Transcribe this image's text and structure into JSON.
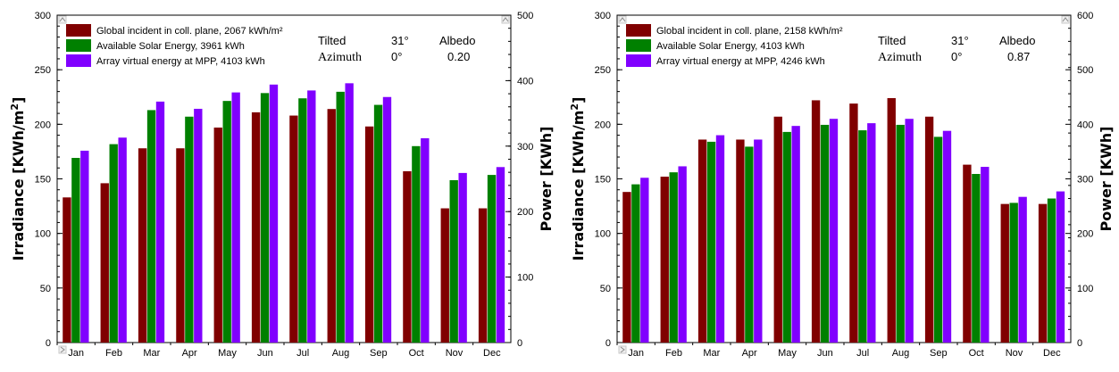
{
  "chart_data": [
    {
      "type": "bar",
      "categories": [
        "Jan",
        "Feb",
        "Mar",
        "Apr",
        "May",
        "Jun",
        "Jul",
        "Aug",
        "Sep",
        "Oct",
        "Nov",
        "Dec"
      ],
      "ylabel": "Irradiance [KWh/m²]",
      "ylabel_main": "Irradiance [KWh/m",
      "ylabel_sup": "2",
      "ylabel_end": "]",
      "y2label": "Power [KWh]",
      "ylim": [
        0,
        300
      ],
      "y2lim": [
        0,
        500
      ],
      "yticks": [
        "0",
        "50",
        "100",
        "150",
        "200",
        "250",
        "300"
      ],
      "y2ticks": [
        "0",
        "100",
        "200",
        "300",
        "400",
        "500"
      ],
      "series": [
        {
          "name": "Global incident in coll. plane,  2067 kWh/m²",
          "axis": "left",
          "color": "#800000",
          "values": [
            133,
            146,
            178,
            178,
            197,
            211,
            208,
            214,
            198,
            157,
            123,
            123
          ]
        },
        {
          "name": "Available Solar Energy,  3961 kWh",
          "axis": "right",
          "color": "#008000",
          "values": [
            282,
            303,
            355,
            345,
            369,
            381,
            373,
            383,
            363,
            300,
            248,
            256
          ]
        },
        {
          "name": "Array virtual energy at MPP,  4103 kWh",
          "axis": "right",
          "color": "#8000ff",
          "values": [
            293,
            313,
            368,
            357,
            382,
            394,
            385,
            396,
            375,
            312,
            259,
            268
          ]
        }
      ],
      "info": {
        "tilted_label": "Tilted",
        "tilted_value": "31°",
        "albedo_label": "Albedo",
        "albedo_value": "0.20",
        "azimuth_label": "Azimuth",
        "azimuth_value": "0°"
      },
      "legend_position": "top-left"
    },
    {
      "type": "bar",
      "categories": [
        "Jan",
        "Feb",
        "Mar",
        "Apr",
        "May",
        "Jun",
        "Jul",
        "Aug",
        "Sep",
        "Oct",
        "Nov",
        "Dec"
      ],
      "ylabel": "Irradiance [KWh/m²]",
      "ylabel_main": "Irradiance [KWh/m",
      "ylabel_sup": "2",
      "ylabel_end": "]",
      "y2label": "Power [KWh]",
      "ylim": [
        0,
        300
      ],
      "y2lim": [
        0,
        600
      ],
      "yticks": [
        "0",
        "50",
        "100",
        "150",
        "200",
        "250",
        "300"
      ],
      "y2ticks": [
        "0",
        "100",
        "200",
        "300",
        "400",
        "500",
        "600"
      ],
      "series": [
        {
          "name": "Global incident in coll. plane,  2158 kWh/m²",
          "axis": "left",
          "color": "#800000",
          "values": [
            138,
            152,
            186,
            186,
            207,
            222,
            219,
            224,
            207,
            163,
            127,
            127
          ]
        },
        {
          "name": "Available Solar Energy,  4103 kWh",
          "axis": "right",
          "color": "#008000",
          "values": [
            290,
            312,
            368,
            359,
            386,
            399,
            389,
            399,
            377,
            309,
            256,
            264
          ]
        },
        {
          "name": "Array virtual energy at MPP,  4246 kWh",
          "axis": "right",
          "color": "#8000ff",
          "values": [
            302,
            323,
            380,
            372,
            397,
            410,
            402,
            410,
            388,
            322,
            267,
            277
          ]
        }
      ],
      "info": {
        "tilted_label": "Tilted",
        "tilted_value": "31°",
        "albedo_label": "Albedo",
        "albedo_value": "0.87",
        "azimuth_label": "Azimuth",
        "azimuth_value": "0°"
      },
      "legend_position": "top-left"
    }
  ]
}
